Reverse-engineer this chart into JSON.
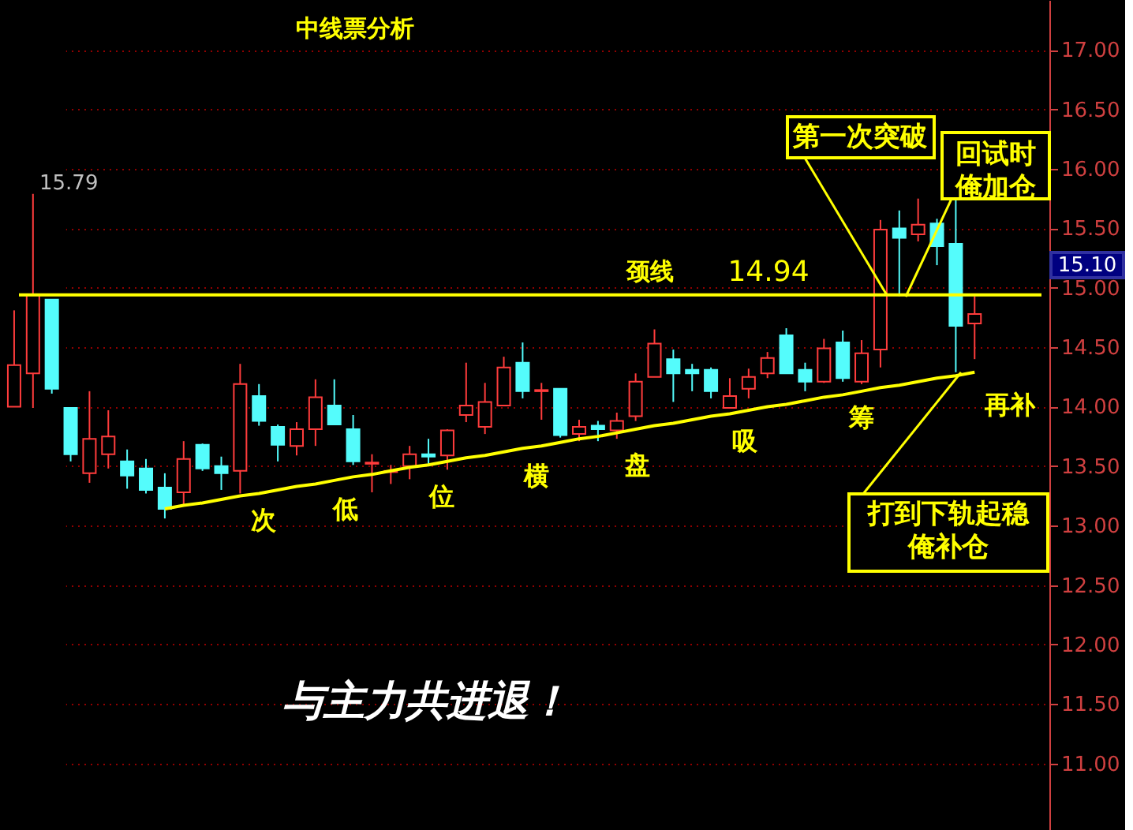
{
  "chart_data": {
    "type": "candlestick",
    "title": "中线票分析",
    "categories": [
      null,
      null,
      null,
      null,
      null,
      null,
      null,
      null,
      null,
      null,
      null,
      null,
      null,
      null,
      null,
      null,
      null,
      null,
      null,
      null,
      null,
      null,
      null,
      null,
      null,
      null,
      null,
      null,
      null,
      null,
      null,
      null,
      null,
      null,
      null,
      null,
      null,
      null,
      null,
      null,
      null,
      null,
      null,
      null,
      null,
      null,
      null,
      null,
      null,
      null,
      null,
      null
    ],
    "ohlc": [
      [
        14.0,
        14.81,
        14.0,
        14.35
      ],
      [
        14.28,
        15.79,
        13.99,
        14.94
      ],
      [
        14.9,
        14.9,
        14.11,
        14.15
      ],
      [
        13.99,
        13.99,
        13.54,
        13.6
      ],
      [
        13.44,
        14.13,
        13.36,
        13.73
      ],
      [
        13.6,
        13.97,
        13.48,
        13.75
      ],
      [
        13.54,
        13.64,
        13.31,
        13.42
      ],
      [
        13.48,
        13.56,
        13.27,
        13.3
      ],
      [
        13.32,
        13.44,
        13.06,
        13.14
      ],
      [
        13.28,
        13.71,
        13.18,
        13.56
      ],
      [
        13.68,
        13.69,
        13.46,
        13.48
      ],
      [
        13.5,
        13.58,
        13.3,
        13.44
      ],
      [
        13.46,
        14.36,
        13.27,
        14.19
      ],
      [
        14.09,
        14.19,
        13.84,
        13.88
      ],
      [
        13.83,
        13.85,
        13.54,
        13.68
      ],
      [
        13.67,
        13.87,
        13.59,
        13.81
      ],
      [
        13.81,
        14.23,
        13.67,
        14.08
      ],
      [
        14.01,
        14.23,
        13.85,
        13.85
      ],
      [
        13.81,
        13.93,
        13.51,
        13.54
      ],
      [
        13.52,
        13.6,
        13.28,
        13.53
      ],
      [
        13.45,
        13.51,
        13.35,
        13.46
      ],
      [
        13.5,
        13.67,
        13.39,
        13.6
      ],
      [
        13.6,
        13.73,
        13.51,
        13.58
      ],
      [
        13.59,
        13.81,
        13.47,
        13.8
      ],
      [
        13.93,
        14.37,
        13.87,
        14.01
      ],
      [
        13.83,
        14.2,
        13.77,
        14.04
      ],
      [
        14.01,
        14.42,
        14.01,
        14.33
      ],
      [
        14.37,
        14.54,
        14.07,
        14.13
      ],
      [
        14.13,
        14.2,
        13.89,
        14.14
      ],
      [
        14.15,
        14.15,
        13.74,
        13.76
      ],
      [
        13.77,
        13.89,
        13.71,
        13.83
      ],
      [
        13.84,
        13.88,
        13.71,
        13.81
      ],
      [
        13.8,
        13.95,
        13.73,
        13.88
      ],
      [
        13.92,
        14.28,
        13.88,
        14.21
      ],
      [
        14.25,
        14.65,
        14.25,
        14.53
      ],
      [
        14.4,
        14.48,
        14.04,
        14.28
      ],
      [
        14.31,
        14.36,
        14.13,
        14.28
      ],
      [
        14.31,
        14.33,
        14.07,
        14.13
      ],
      [
        13.99,
        14.24,
        13.99,
        14.09
      ],
      [
        14.15,
        14.32,
        14.07,
        14.25
      ],
      [
        14.28,
        14.46,
        14.24,
        14.41
      ],
      [
        14.6,
        14.66,
        14.28,
        14.28
      ],
      [
        14.31,
        14.37,
        14.13,
        14.21
      ],
      [
        14.21,
        14.57,
        14.2,
        14.49
      ],
      [
        14.54,
        14.64,
        14.21,
        14.24
      ],
      [
        14.21,
        14.56,
        14.19,
        14.45
      ],
      [
        14.48,
        15.57,
        14.33,
        15.49
      ],
      [
        15.5,
        15.65,
        14.93,
        15.42
      ],
      [
        15.45,
        15.75,
        15.39,
        15.53
      ],
      [
        15.54,
        15.58,
        15.19,
        15.35
      ],
      [
        15.37,
        15.74,
        14.29,
        14.68
      ],
      [
        14.7,
        14.93,
        14.4,
        14.78
      ]
    ],
    "colors": [
      "#ff3c3c",
      "#ff3c3c",
      "#54fcfc",
      "#54fcfc",
      "#ff3c3c",
      "#ff3c3c",
      "#54fcfc",
      "#54fcfc",
      "#54fcfc",
      "#ff3c3c",
      "#54fcfc",
      "#54fcfc",
      "#ff3c3c",
      "#54fcfc",
      "#54fcfc",
      "#ff3c3c",
      "#ff3c3c",
      "#54fcfc",
      "#54fcfc",
      "#ff3c3c",
      "#ff3c3c",
      "#ff3c3c",
      "#54fcfc",
      "#ff3c3c",
      "#ff3c3c",
      "#ff3c3c",
      "#ff3c3c",
      "#54fcfc",
      "#ff3c3c",
      "#54fcfc",
      "#ff3c3c",
      "#54fcfc",
      "#ff3c3c",
      "#ff3c3c",
      "#ff3c3c",
      "#54fcfc",
      "#54fcfc",
      "#54fcfc",
      "#ff3c3c",
      "#ff3c3c",
      "#ff3c3c",
      "#54fcfc",
      "#54fcfc",
      "#ff3c3c",
      "#54fcfc",
      "#ff3c3c",
      "#ff3c3c",
      "#54fcfc",
      "#ff3c3c",
      "#54fcfc",
      "#54fcfc",
      "#ff3c3c"
    ],
    "series": [
      {
        "type": "line",
        "color": "#ffff00",
        "values": [
          null,
          null,
          null,
          null,
          null,
          null,
          null,
          null,
          13.14,
          13.17,
          13.19,
          13.22,
          13.25,
          13.27,
          13.3,
          13.33,
          13.35,
          13.38,
          13.41,
          13.43,
          13.46,
          13.49,
          13.51,
          13.54,
          13.57,
          13.59,
          13.62,
          13.65,
          13.67,
          13.7,
          13.73,
          13.75,
          13.78,
          13.81,
          13.84,
          13.86,
          13.89,
          13.92,
          13.94,
          13.97,
          14.0,
          14.02,
          14.05,
          14.08,
          14.1,
          14.13,
          14.16,
          14.18,
          14.21,
          14.24,
          14.26,
          14.29
        ]
      }
    ],
    "ref_lines": [
      {
        "axis": "y",
        "value": 14.94,
        "label": "颈线",
        "color": "#ffff00"
      }
    ],
    "ylim": [
      10.44,
      17.42
    ],
    "yticks": [
      {
        "value": 11,
        "label": "11.00"
      },
      {
        "value": 11.5,
        "label": "11.50"
      },
      {
        "value": 12,
        "label": "12.00"
      },
      {
        "value": 12.5,
        "label": "12.50"
      },
      {
        "value": 13,
        "label": "13.00"
      },
      {
        "value": 13.5,
        "label": "13.50"
      },
      {
        "value": 14,
        "label": "14.00"
      },
      {
        "value": 14.5,
        "label": "14.50"
      },
      {
        "value": 15,
        "label": "15.00"
      },
      {
        "value": 15.5,
        "label": "15.50"
      },
      {
        "value": 16,
        "label": "16.00"
      },
      {
        "value": 16.5,
        "label": "16.50"
      },
      {
        "value": 17,
        "label": "17.00"
      }
    ],
    "tick_labels": "y",
    "grid": "y",
    "annotations": [
      "第一次突破",
      "回试时俺加仓",
      "打到下轨起稳俺补仓",
      "再补",
      "次",
      "低",
      "位",
      "横",
      "盘",
      "吸",
      "筹",
      "15.79",
      "与主力共进退！",
      "15.10",
      {
        "text": "14.94",
        "y": 14.94
      }
    ]
  }
}
